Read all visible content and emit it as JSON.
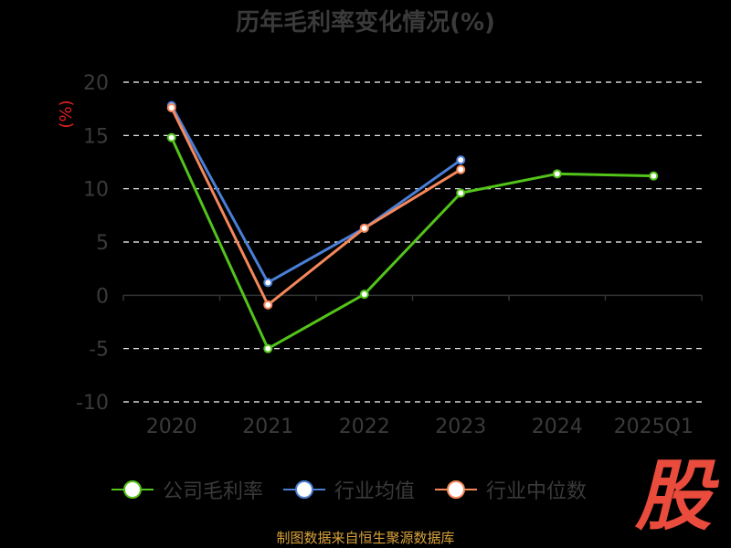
{
  "title": "历年毛利率变化情况(%)",
  "footer": "制图数据来自恒生聚源数据库",
  "logo_text": "股",
  "chart_data": {
    "type": "line",
    "categories": [
      "2020",
      "2021",
      "2022",
      "2023",
      "2024",
      "2025Q1"
    ],
    "ylabel": "(%)",
    "ylim": [
      -10,
      20
    ],
    "yticks": [
      20,
      15,
      10,
      5,
      0,
      -5,
      -10
    ],
    "grid": true,
    "legend_position": "bottom",
    "series": [
      {
        "name": "公司毛利率",
        "color": "#52c41a",
        "values": [
          14.8,
          -5.0,
          0.1,
          9.6,
          11.4,
          11.2
        ]
      },
      {
        "name": "行业均值",
        "color": "#4a7fd6",
        "values": [
          17.8,
          1.2,
          6.3,
          12.7,
          null,
          null
        ]
      },
      {
        "name": "行业中位数",
        "color": "#f5885b",
        "values": [
          17.6,
          -0.9,
          6.3,
          11.8,
          null,
          null
        ]
      }
    ]
  }
}
